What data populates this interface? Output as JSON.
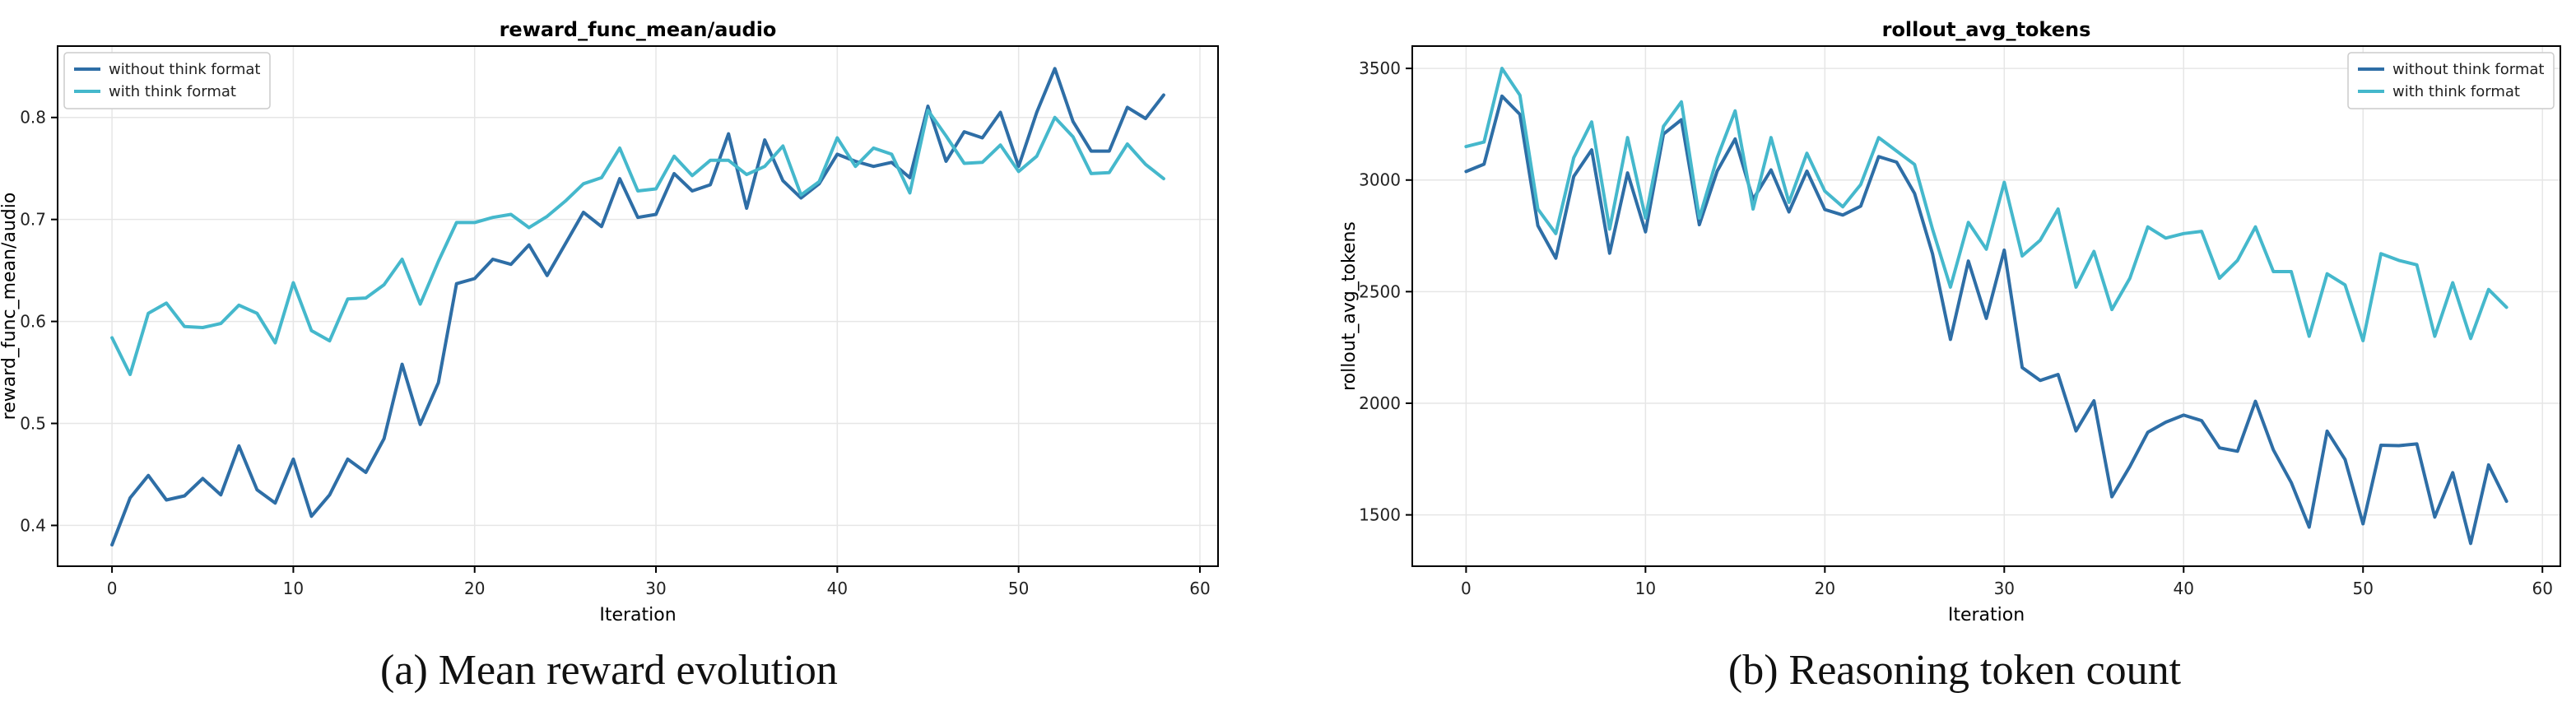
{
  "colors": {
    "without": "#2e6ea6",
    "with": "#45b8cc",
    "grid": "#e6e6e6",
    "axis": "#000000"
  },
  "captions": [
    "(a) Mean reward evolution",
    "(b) Reasoning token count"
  ],
  "chart_data": [
    {
      "type": "line",
      "title": "reward_func_mean/audio",
      "xlabel": "Iteration",
      "ylabel": "reward_func_mean/audio",
      "xlim": [
        -3,
        61
      ],
      "ylim": [
        0.36,
        0.87
      ],
      "xticks": [
        0,
        10,
        20,
        30,
        40,
        50,
        60
      ],
      "xtick_labels": [
        "0",
        "10",
        "20",
        "30",
        "40",
        "50",
        "60"
      ],
      "yticks": [
        0.4,
        0.5,
        0.6,
        0.7,
        0.8
      ],
      "ytick_labels": [
        "0.4",
        "0.5",
        "0.6",
        "0.7",
        "0.8"
      ],
      "grid": true,
      "legend_position": "upper-left",
      "x": [
        0,
        1,
        2,
        3,
        4,
        5,
        6,
        7,
        8,
        9,
        10,
        11,
        12,
        13,
        14,
        15,
        16,
        17,
        18,
        19,
        20,
        21,
        22,
        23,
        24,
        25,
        26,
        27,
        28,
        29,
        30,
        31,
        32,
        33,
        34,
        35,
        36,
        37,
        38,
        39,
        40,
        41,
        42,
        43,
        44,
        45,
        46,
        47,
        48,
        49,
        50,
        51,
        52,
        53,
        54,
        55,
        56,
        57,
        58
      ],
      "series": [
        {
          "name": "without think format",
          "color": "#2e6ea6",
          "values": [
            0.381,
            0.427,
            0.449,
            0.425,
            0.429,
            0.446,
            0.43,
            0.478,
            0.435,
            0.422,
            0.465,
            0.409,
            0.43,
            0.465,
            0.452,
            0.485,
            0.558,
            0.499,
            0.54,
            0.637,
            0.642,
            0.661,
            0.656,
            0.675,
            0.645,
            0.676,
            0.707,
            0.693,
            0.74,
            0.702,
            0.705,
            0.745,
            0.728,
            0.734,
            0.784,
            0.711,
            0.778,
            0.738,
            0.721,
            0.735,
            0.764,
            0.757,
            0.752,
            0.756,
            0.741,
            0.811,
            0.757,
            0.786,
            0.78,
            0.805,
            0.752,
            0.805,
            0.848,
            0.796,
            0.767,
            0.767,
            0.81,
            0.799,
            0.822
          ]
        },
        {
          "name": "with think format",
          "color": "#45b8cc",
          "values": [
            0.584,
            0.548,
            0.608,
            0.618,
            0.595,
            0.594,
            0.598,
            0.616,
            0.608,
            0.579,
            0.638,
            0.591,
            0.581,
            0.622,
            0.623,
            0.636,
            0.661,
            0.617,
            0.659,
            0.697,
            0.697,
            0.702,
            0.705,
            0.692,
            0.703,
            0.718,
            0.735,
            0.741,
            0.77,
            0.728,
            0.73,
            0.762,
            0.743,
            0.758,
            0.758,
            0.744,
            0.752,
            0.772,
            0.724,
            0.737,
            0.78,
            0.752,
            0.77,
            0.764,
            0.726,
            0.807,
            0.782,
            0.755,
            0.756,
            0.773,
            0.747,
            0.762,
            0.8,
            0.781,
            0.745,
            0.746,
            0.774,
            0.754,
            0.74
          ]
        }
      ]
    },
    {
      "type": "line",
      "title": "rollout_avg_tokens",
      "xlabel": "Iteration",
      "ylabel": "rollout_avg_tokens",
      "xlim": [
        -3,
        61
      ],
      "ylim": [
        1270,
        3600
      ],
      "xticks": [
        0,
        10,
        20,
        30,
        40,
        50,
        60
      ],
      "xtick_labels": [
        "0",
        "10",
        "20",
        "30",
        "40",
        "50",
        "60"
      ],
      "yticks": [
        1500,
        2000,
        2500,
        3000,
        3500
      ],
      "ytick_labels": [
        "1500",
        "2000",
        "2500",
        "3000",
        "3500"
      ],
      "grid": true,
      "legend_position": "upper-right",
      "x": [
        0,
        1,
        2,
        3,
        4,
        5,
        6,
        7,
        8,
        9,
        10,
        11,
        12,
        13,
        14,
        15,
        16,
        17,
        18,
        19,
        20,
        21,
        22,
        23,
        24,
        25,
        26,
        27,
        28,
        29,
        30,
        31,
        32,
        33,
        34,
        35,
        36,
        37,
        38,
        39,
        40,
        41,
        42,
        43,
        44,
        45,
        46,
        47,
        48,
        49,
        50,
        51,
        52,
        53,
        54,
        55,
        56,
        57,
        58
      ],
      "series": [
        {
          "name": "without think format",
          "color": "#2e6ea6",
          "values": [
            3038,
            3071,
            3376,
            3294,
            2796,
            2650,
            3016,
            3135,
            2672,
            3032,
            2768,
            3206,
            3270,
            2800,
            3040,
            3184,
            2913,
            3045,
            2857,
            3040,
            2868,
            2843,
            2883,
            3105,
            3080,
            2940,
            2670,
            2286,
            2637,
            2380,
            2686,
            2160,
            2102,
            2129,
            1876,
            2011,
            1581,
            1717,
            1870,
            1915,
            1947,
            1922,
            1800,
            1785,
            2009,
            1791,
            1645,
            1445,
            1875,
            1748,
            1460,
            1812,
            1810,
            1818,
            1490,
            1689,
            1372,
            1724,
            1561
          ]
        },
        {
          "name": "with think format",
          "color": "#45b8cc",
          "values": [
            3150,
            3170,
            3500,
            3380,
            2870,
            2760,
            3100,
            3260,
            2780,
            3190,
            2830,
            3240,
            3350,
            2830,
            3100,
            3310,
            2870,
            3190,
            2900,
            3120,
            2950,
            2880,
            2980,
            3190,
            3130,
            3070,
            2780,
            2520,
            2810,
            2690,
            2990,
            2660,
            2730,
            2870,
            2520,
            2680,
            2420,
            2560,
            2790,
            2740,
            2760,
            2770,
            2560,
            2640,
            2790,
            2590,
            2590,
            2300,
            2580,
            2530,
            2280,
            2670,
            2640,
            2620,
            2300,
            2540,
            2290,
            2510,
            2430
          ]
        }
      ]
    }
  ]
}
